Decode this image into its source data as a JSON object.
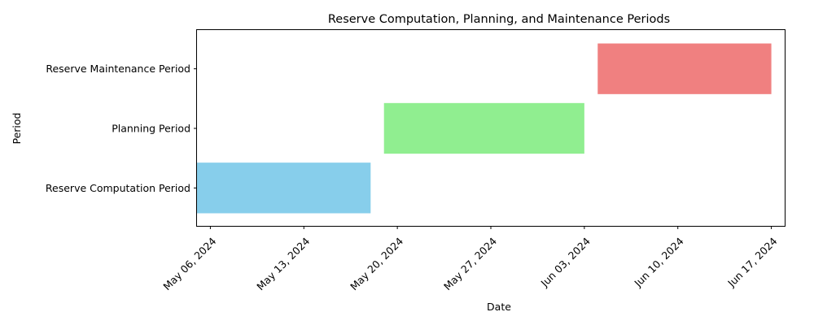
{
  "chart_data": {
    "type": "gantt",
    "title": "Reserve Computation, Planning, and Maintenance Periods",
    "xlabel": "Date",
    "ylabel": "Period",
    "x_ticks": [
      "May 06, 2024",
      "May 13, 2024",
      "May 20, 2024",
      "May 27, 2024",
      "Jun 03, 2024",
      "Jun 10, 2024",
      "Jun 17, 2024"
    ],
    "tick_dates": [
      "2024-05-06",
      "2024-05-13",
      "2024-05-20",
      "2024-05-27",
      "2024-06-03",
      "2024-06-10",
      "2024-06-17"
    ],
    "xlim": [
      "2024-05-05",
      "2024-06-18"
    ],
    "categories": [
      "Reserve Computation Period",
      "Planning Period",
      "Reserve Maintenance Period"
    ],
    "series": [
      {
        "category": "Reserve Computation Period",
        "start": "2024-05-05",
        "end": "2024-05-18",
        "color": "#87ceeb"
      },
      {
        "category": "Planning Period",
        "start": "2024-05-19",
        "end": "2024-06-03",
        "color": "#90ee90"
      },
      {
        "category": "Reserve Maintenance Period",
        "start": "2024-06-04",
        "end": "2024-06-17",
        "color": "#f08080"
      }
    ],
    "grid": false,
    "legend": "none"
  }
}
